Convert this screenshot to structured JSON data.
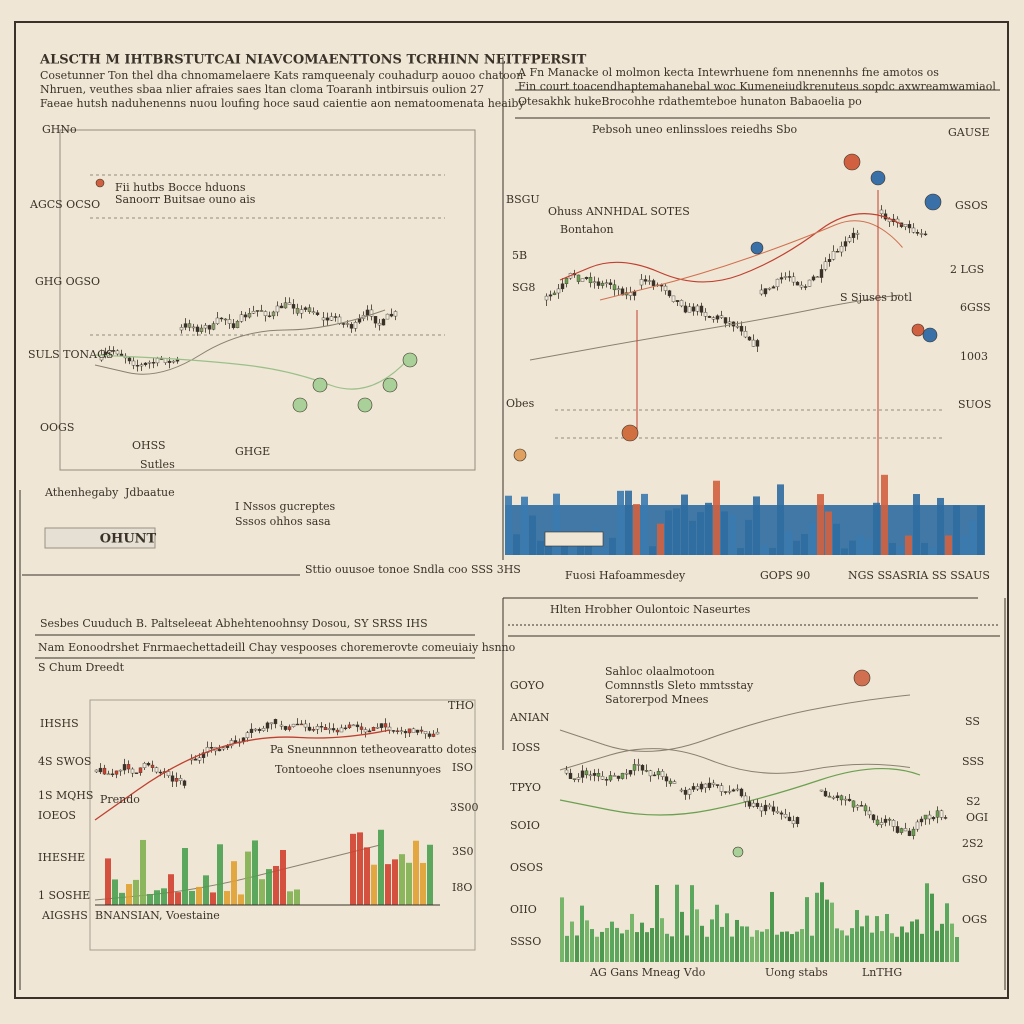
{
  "panels": [
    {
      "title": "ALSCTH M IHTBRSTUTCAI NIAVCOMAENTTONS TCRHINN NEITFPERSIT",
      "lines": [
        "Cosetunner Ton thel dha chnomamelaere Kats ramqueenaly couhadurp aouoo chatoon",
        "Nhruen, veuthes sbaa nlier afraies saes ltan cloma Toaranh intbirsuis oulion 27",
        "Faeae hutsh naduhenenns nuou loufing hoce saud caientie aon nematoomenata heaiby"
      ],
      "y_labels": [
        "GHNo",
        "AGCS OCSO",
        "GHG OGSO",
        "SULS TONAGS",
        "OOGS"
      ],
      "notes": [
        "Fii hutbs Bocce hduons",
        "Sanoorr Buitsae ouno ais",
        "OHSS",
        "Sutles",
        "GHGE",
        "Athenhegaby",
        "Jdbaatue",
        "I Nssos gucreptes",
        "Sssos ohhos sasa",
        "OHUNT",
        "Sttio ouusoe tonoe Sndla coo SSS 3HS"
      ]
    },
    {
      "title": "A Fn Manacke ol molmon kecta Intewrhuene fom nnenennhs fne amotos os",
      "lines": [
        "Fin court toacendhaptemahanebal woc Kumeneiudkrenuteus sopdc axwreamwamiaol",
        "Otesakhk hukeBrocohhe rdathemteboe hunaton Babaoelia po",
        "Pebsoh uneo enlinssloes reiedhs Sbo"
      ],
      "y_labels": [
        "BSGU",
        "5B",
        "SG8",
        "Obes"
      ],
      "notes": [
        "GAUSE",
        "GSOS",
        "2 LGS",
        "6GSS",
        "1003",
        "SUOS",
        "Ohuss ANNHDAL SOTES",
        "Bontahon",
        "S Sjuses botl",
        "Fuosi Hafoammesdey",
        "GOPS 90",
        "NGS SSASRIA SS SSAUS"
      ]
    },
    {
      "title": "Sesbes Cuuduch B. Paltseleeat Abhehtenoohnsy Dosou, SY SRSS IHS",
      "lines": [
        "Nam Eonoodrshet Fnrmaechettadeill Chay vespooses choremerovte comeuiaiy hsnno",
        "S Chum Dreedt"
      ],
      "y_labels": [
        "IHSHS",
        "4S SWOS",
        "1S MQHS",
        "IOEOS",
        "IHESHE",
        "1 SOSHE",
        "AIGSHS"
      ],
      "notes": [
        "THO",
        "ISO",
        "3S00",
        "3S0",
        "I8O",
        "Pa Sneunnnnon tetheovearatto dotes",
        "Tontoeohe cloes nsenunnyoes",
        "BNANSIAN, Voestaine",
        "Prendo"
      ]
    },
    {
      "title": "Hlten Hrobher Oulontoic Naseurtes",
      "lines": [
        "Sahloc olaalmotoon",
        "Comnnstls Sleto mmtsstay",
        "Satorerpod Mnees"
      ],
      "y_labels": [
        "GOYO",
        "ANIAN",
        "IOSS",
        "TPYO",
        "SOIO",
        "OSOS",
        "OIIO",
        "SSSO"
      ],
      "notes": [
        "SS",
        "SSS",
        "S2",
        "OGI",
        "2S2",
        "GSO",
        "OGS",
        "AG Gans Mneag Vdo",
        "Uong stabs",
        "LnTHG"
      ]
    }
  ]
}
